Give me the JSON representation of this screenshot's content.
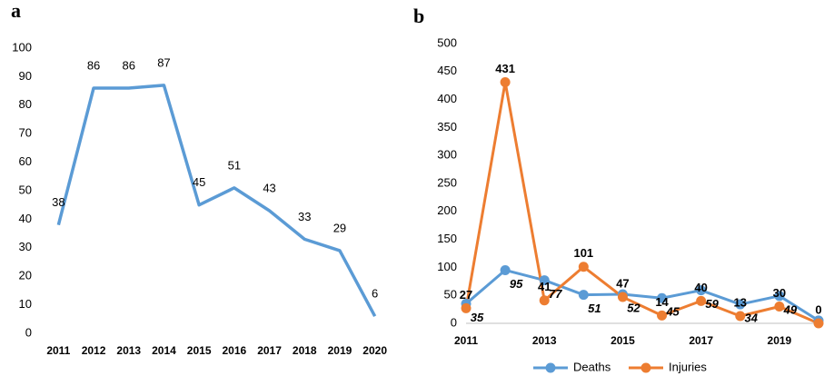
{
  "chart_data": [
    {
      "type": "line",
      "title": "a",
      "categories": [
        "2011",
        "2012",
        "2013",
        "2014",
        "2015",
        "2016",
        "2017",
        "2018",
        "2019",
        "2020"
      ],
      "values": [
        38,
        86,
        86,
        87,
        45,
        51,
        43,
        33,
        29,
        6
      ],
      "color": "#5b9bd5",
      "ylim": [
        0,
        100
      ],
      "yticks": [
        0,
        10,
        20,
        30,
        40,
        50,
        60,
        70,
        80,
        90,
        100
      ],
      "data_labels": true,
      "grid": false
    },
    {
      "type": "line",
      "title": "b",
      "x": [
        2011,
        2012,
        2013,
        2014,
        2015,
        2016,
        2017,
        2018,
        2019,
        2020
      ],
      "xlim": [
        2011,
        2020
      ],
      "xticks": [
        2011,
        2013,
        2015,
        2017,
        2019
      ],
      "series": [
        {
          "name": "Deaths",
          "color": "#5b9bd5",
          "values": [
            35,
            95,
            77,
            51,
            52,
            45,
            59,
            34,
            49,
            5
          ]
        },
        {
          "name": "Injuries",
          "color": "#ed7d31",
          "values": [
            27,
            431,
            41,
            101,
            47,
            14,
            40,
            13,
            30,
            0
          ]
        }
      ],
      "ylim": [
        0,
        500
      ],
      "yticks": [
        0,
        50,
        100,
        150,
        200,
        250,
        300,
        350,
        400,
        450,
        500
      ],
      "markers": true,
      "data_labels": true,
      "legend": "bottom",
      "grid": false
    }
  ]
}
